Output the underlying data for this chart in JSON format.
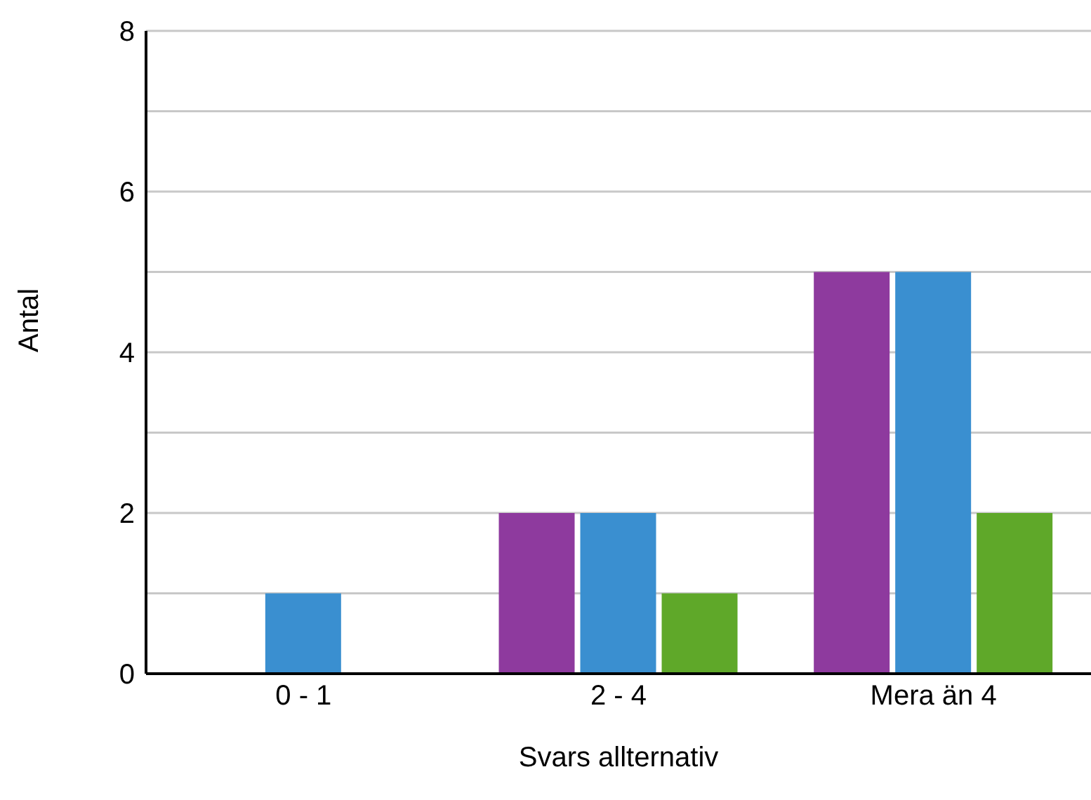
{
  "chart_data": {
    "type": "bar",
    "xlabel": "Svars allternativ",
    "ylabel": "Antal",
    "categories": [
      "0 - 1",
      "2 - 4",
      "Mera än 4"
    ],
    "series": [
      {
        "color": "#8e3a9e",
        "values": [
          0,
          2,
          5
        ]
      },
      {
        "color": "#3a8fd0",
        "values": [
          1,
          2,
          5
        ]
      },
      {
        "color": "#5fa829",
        "values": [
          0,
          1,
          2
        ]
      }
    ],
    "ylim": [
      0,
      8
    ],
    "yticks": [
      0,
      {
        "value": 1,
        "label": null
      },
      2,
      {
        "value": 3,
        "label": null
      },
      4,
      {
        "value": 5,
        "label": null
      },
      6,
      {
        "value": 7,
        "label": null
      },
      8
    ],
    "grid": "y",
    "legend": false
  }
}
